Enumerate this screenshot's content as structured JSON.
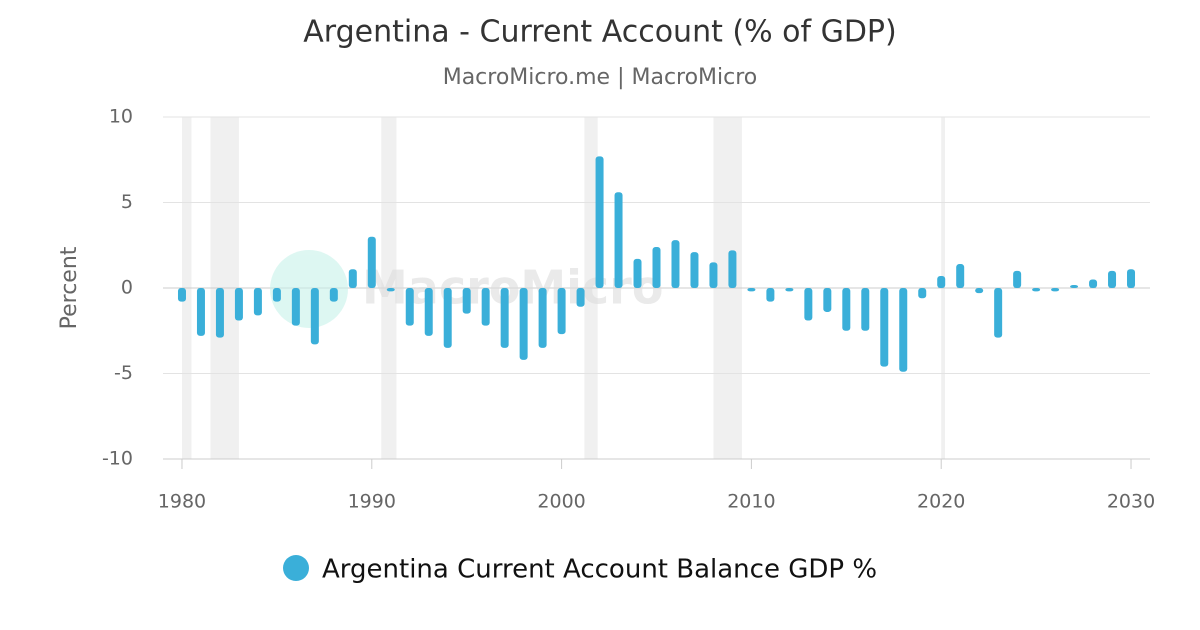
{
  "chart_data": {
    "type": "bar",
    "title": "Argentina - Current Account (% of GDP)",
    "subtitle": "MacroMicro.me | MacroMicro",
    "watermark": "MacroMicro",
    "y_label": "Percent",
    "x": [
      1980,
      1981,
      1982,
      1983,
      1984,
      1985,
      1986,
      1987,
      1988,
      1989,
      1990,
      1991,
      1992,
      1993,
      1994,
      1995,
      1996,
      1997,
      1998,
      1999,
      2000,
      2001,
      2002,
      2003,
      2004,
      2005,
      2006,
      2007,
      2008,
      2009,
      2010,
      2011,
      2012,
      2013,
      2014,
      2015,
      2016,
      2017,
      2018,
      2019,
      2020,
      2021,
      2022,
      2023,
      2024,
      2025,
      2026,
      2027,
      2028,
      2029,
      2030
    ],
    "series": [
      {
        "name": "Argentina Current Account Balance GDP %",
        "color": "#3aafd9",
        "values": [
          -0.8,
          -2.8,
          -2.9,
          -1.9,
          -1.6,
          -0.8,
          -2.2,
          -3.3,
          -0.8,
          1.1,
          3.0,
          -0.2,
          -2.2,
          -2.8,
          -3.5,
          -1.5,
          -2.2,
          -3.5,
          -4.2,
          -3.5,
          -2.7,
          -1.1,
          7.7,
          5.6,
          1.7,
          2.4,
          2.8,
          2.1,
          1.5,
          2.2,
          -0.2,
          -0.8,
          -0.2,
          -1.9,
          -1.4,
          -2.5,
          -2.5,
          -4.6,
          -4.9,
          -0.6,
          0.7,
          1.4,
          -0.3,
          -2.9,
          1.0,
          -0.2,
          -0.2,
          0.1,
          0.5,
          1.0,
          1.1
        ]
      }
    ],
    "recessions": [
      [
        1980,
        1980.5
      ],
      [
        1981.5,
        1983
      ],
      [
        1990.5,
        1991.3
      ],
      [
        2001.2,
        2001.9
      ],
      [
        2008,
        2009.5
      ],
      [
        2020,
        2020.2
      ]
    ],
    "xlim": [
      1979,
      2031
    ],
    "xticks": [
      1980,
      1990,
      2000,
      2010,
      2020,
      2030
    ],
    "ylim": [
      -10,
      10
    ],
    "yticks": [
      -10,
      -5,
      0,
      5,
      10
    ],
    "grid": true
  }
}
